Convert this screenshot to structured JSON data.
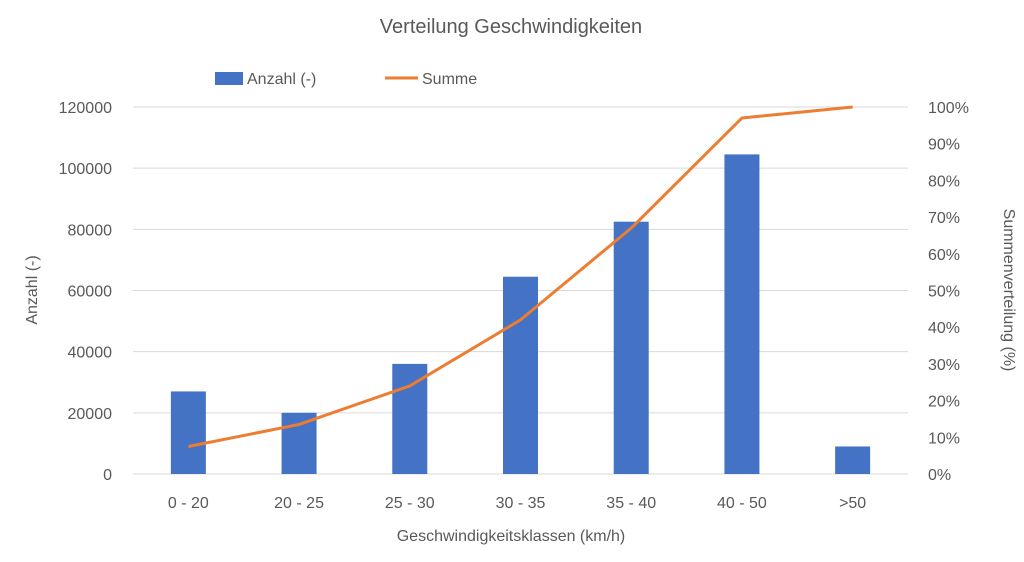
{
  "chart_data": {
    "type": "bar",
    "title": "Verteilung Geschwindigkeiten",
    "xlabel": "Geschwindigkeitsklassen (km/h)",
    "ylabel": "Anzahl (-)",
    "y2label": "Summenverteilung (%)",
    "categories": [
      "0 - 20",
      "20 - 25",
      "25 - 30",
      "30 - 35",
      "35 - 40",
      "40 - 50",
      ">50"
    ],
    "ylim": [
      0,
      120000
    ],
    "yticks": [
      "0",
      "20000",
      "40000",
      "60000",
      "80000",
      "100000",
      "120000"
    ],
    "y2lim": [
      0,
      1
    ],
    "y2ticks": [
      "0%",
      "10%",
      "20%",
      "30%",
      "40%",
      "50%",
      "60%",
      "70%",
      "80%",
      "90%",
      "100%"
    ],
    "grid": true,
    "legend": "top",
    "series": [
      {
        "name": "Anzahl (-)",
        "type": "bar",
        "axis": "left",
        "color": "#4472C4",
        "values": [
          27000,
          20000,
          36000,
          64500,
          82500,
          104500,
          9000
        ]
      },
      {
        "name": "Summe",
        "type": "line",
        "axis": "right",
        "color": "#ED7D31",
        "values": [
          0.075,
          0.135,
          0.24,
          0.42,
          0.67,
          0.97,
          1.0
        ]
      }
    ]
  }
}
